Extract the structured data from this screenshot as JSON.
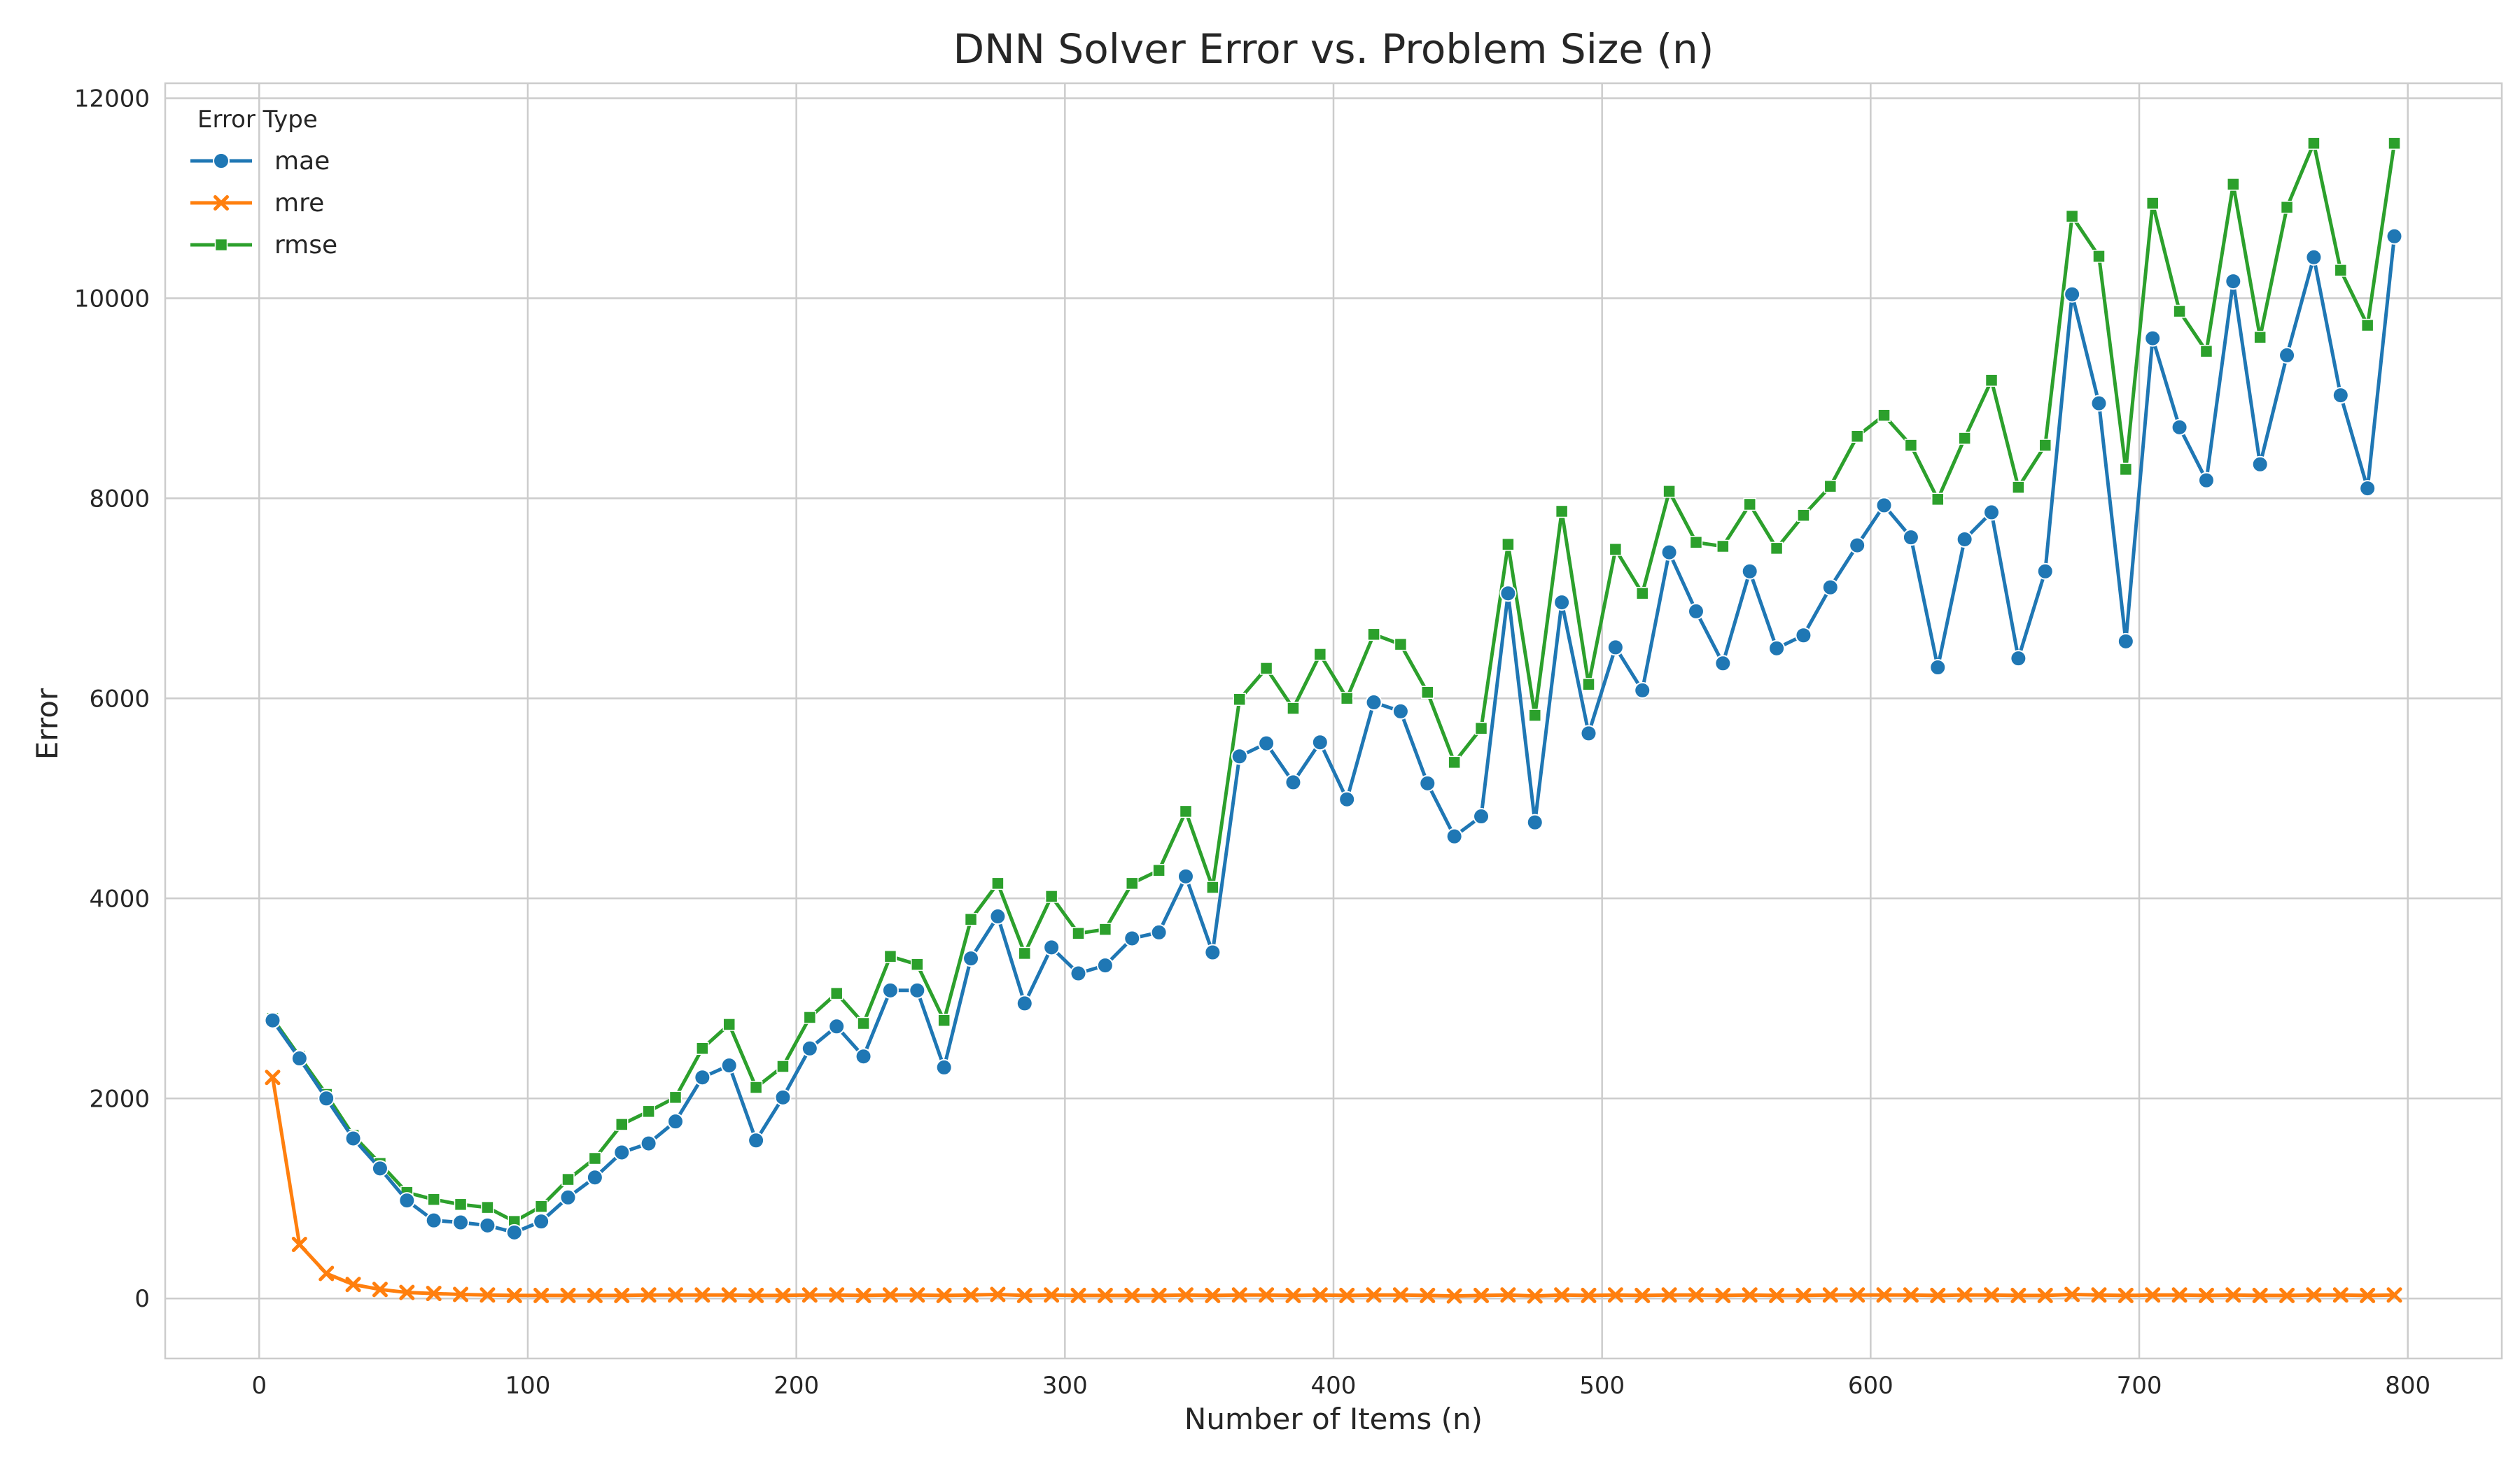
{
  "chart_data": {
    "type": "line",
    "title": "DNN Solver Error vs. Problem Size (n)",
    "xlabel": "Number of Items (n)",
    "ylabel": "Error",
    "xlim": [
      -35,
      835
    ],
    "ylim": [
      -600,
      12150
    ],
    "x_ticks": [
      "0",
      "100",
      "200",
      "300",
      "400",
      "500",
      "600",
      "700",
      "800"
    ],
    "y_ticks": [
      "0",
      "2000",
      "4000",
      "6000",
      "8000",
      "10000",
      "12000"
    ],
    "grid": true,
    "legend": {
      "title": "Error Type",
      "placement": "top-left"
    },
    "x": [
      5,
      15,
      25,
      35,
      45,
      55,
      65,
      75,
      85,
      95,
      105,
      115,
      125,
      135,
      145,
      155,
      165,
      175,
      185,
      195,
      205,
      215,
      225,
      235,
      245,
      255,
      265,
      275,
      285,
      295,
      305,
      315,
      325,
      335,
      345,
      355,
      365,
      375,
      385,
      395,
      405,
      415,
      425,
      435,
      445,
      455,
      465,
      475,
      485,
      495,
      505,
      515,
      525,
      535,
      545,
      555,
      565,
      575,
      585,
      595,
      605,
      615,
      625,
      635,
      645,
      655,
      665,
      675,
      685,
      695,
      705,
      715,
      725,
      735,
      745,
      755,
      765,
      775,
      785,
      795
    ],
    "series": [
      {
        "name": "mae",
        "color": "#1f77b4",
        "marker": "circle",
        "values": [
          2780,
          2400,
          2000,
          1600,
          1300,
          980,
          780,
          760,
          730,
          660,
          770,
          1010,
          1210,
          1460,
          1550,
          1770,
          2210,
          2330,
          1580,
          2010,
          2500,
          2720,
          2420,
          3080,
          3080,
          2310,
          3400,
          3820,
          2950,
          3510,
          3250,
          3330,
          3600,
          3660,
          4220,
          3460,
          5420,
          5550,
          5160,
          5560,
          4990,
          5960,
          5870,
          5150,
          4620,
          4820,
          7050,
          4760,
          6960,
          5650,
          6510,
          6080,
          7460,
          6870,
          6350,
          7270,
          6500,
          6630,
          7110,
          7530,
          7930,
          7610,
          6310,
          7590,
          7860,
          6400,
          7270,
          10040,
          8950,
          6570,
          9600,
          8710,
          8180,
          10170,
          8340,
          9430,
          10410,
          9030,
          8100,
          10620
        ]
      },
      {
        "name": "mre",
        "color": "#ff7f0e",
        "marker": "x",
        "values": [
          2210,
          540,
          250,
          140,
          90,
          60,
          50,
          40,
          35,
          30,
          30,
          30,
          30,
          30,
          35,
          35,
          35,
          35,
          30,
          30,
          35,
          35,
          30,
          35,
          35,
          30,
          35,
          40,
          30,
          35,
          30,
          30,
          30,
          30,
          35,
          30,
          35,
          35,
          30,
          35,
          30,
          35,
          35,
          30,
          25,
          30,
          35,
          25,
          35,
          30,
          35,
          30,
          35,
          35,
          30,
          35,
          30,
          30,
          35,
          35,
          35,
          35,
          30,
          35,
          35,
          30,
          30,
          40,
          35,
          30,
          35,
          35,
          30,
          35,
          30,
          30,
          35,
          35,
          30,
          35
        ]
      },
      {
        "name": "rmse",
        "color": "#2ca02c",
        "marker": "square",
        "values": [
          2800,
          2420,
          2040,
          1630,
          1350,
          1060,
          990,
          940,
          910,
          770,
          920,
          1190,
          1400,
          1740,
          1870,
          2010,
          2500,
          2740,
          2110,
          2320,
          2810,
          3050,
          2750,
          3420,
          3340,
          2780,
          3790,
          4150,
          3450,
          4020,
          3650,
          3690,
          4150,
          4280,
          4870,
          4110,
          5990,
          6300,
          5900,
          6440,
          6000,
          6640,
          6540,
          6060,
          5360,
          5700,
          7540,
          5830,
          7870,
          6140,
          7490,
          7050,
          8070,
          7560,
          7520,
          7940,
          7500,
          7830,
          8120,
          8620,
          8830,
          8530,
          7990,
          8600,
          9180,
          8110,
          8530,
          10820,
          10420,
          8290,
          10950,
          9870,
          9470,
          11140,
          9610,
          10910,
          11550,
          10280,
          9730,
          11550
        ]
      }
    ]
  }
}
